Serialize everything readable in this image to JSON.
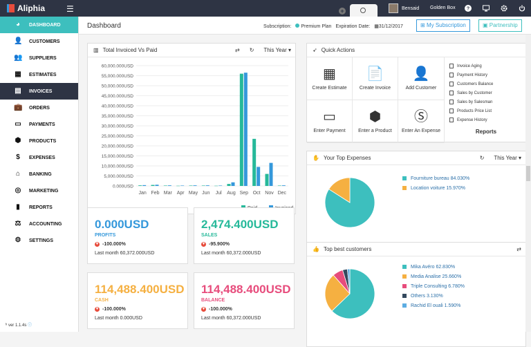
{
  "app": {
    "title": "Aliphia",
    "version": "ver 1.1.4s"
  },
  "topbar": {
    "user": "Bensaid",
    "company": "Golden Box"
  },
  "sidebar": {
    "items": [
      {
        "label": "DASHBOARD",
        "icon": "palette-icon"
      },
      {
        "label": "CUSTOMERS",
        "icon": "person-icon"
      },
      {
        "label": "SUPPLIERS",
        "icon": "supplier-icon"
      },
      {
        "label": "ESTIMATES",
        "icon": "calculator-icon"
      },
      {
        "label": "INVOICES",
        "icon": "invoice-icon"
      },
      {
        "label": "ORDERS",
        "icon": "briefcase-icon"
      },
      {
        "label": "PAYMENTS",
        "icon": "card-icon"
      },
      {
        "label": "PRODUCTS",
        "icon": "box-icon"
      },
      {
        "label": "EXPENSES",
        "icon": "dollar-icon"
      },
      {
        "label": "BANKING",
        "icon": "bank-icon"
      },
      {
        "label": "MARKETING",
        "icon": "target-icon"
      },
      {
        "label": "REPORTS",
        "icon": "bars-icon"
      },
      {
        "label": "ACCOUNTING",
        "icon": "scale-icon"
      },
      {
        "label": "SETTINGS",
        "icon": "gear-icon"
      }
    ]
  },
  "header": {
    "title": "Dashboard",
    "subscription_label": "Subscription:",
    "plan": "Premium Plan",
    "expiration_label": "Expiration Date:",
    "expiration_date": "31/12/2017",
    "my_subscription": "My Subscription",
    "partnership": "Partnership"
  },
  "invoice_chart": {
    "title": "Total Invoiced Vs Paid",
    "period": "This Year"
  },
  "chart_data": {
    "type": "bar",
    "categories": [
      "Jan",
      "Feb",
      "Mar",
      "Apr",
      "May",
      "Jun",
      "Jul",
      "Aug",
      "Sep",
      "Oct",
      "Nov",
      "Dec"
    ],
    "series": [
      {
        "name": "Paid",
        "color": "#26b99a",
        "values": [
          0.3,
          0.5,
          0.2,
          0.1,
          0.2,
          0.2,
          0.1,
          1.0,
          56.0,
          23.5,
          6.0,
          0.2
        ]
      },
      {
        "name": "Invoiced",
        "color": "#3498db",
        "values": [
          0.4,
          0.6,
          0.3,
          0.2,
          0.3,
          0.3,
          0.2,
          1.8,
          56.5,
          9.5,
          11.5,
          0.3
        ]
      }
    ],
    "yticks": [
      "60,000.000USD",
      "55,000.000USD",
      "50,000.000USD",
      "45,000.000USD",
      "40,000.000USD",
      "35,000.000USD",
      "30,000.000USD",
      "25,000.000USD",
      "20,000.000USD",
      "15,000.000USD",
      "10,000.000USD",
      "5,000.000USD",
      "0.000USD"
    ],
    "ylim": [
      0,
      60
    ],
    "legend": [
      "Paid",
      "Invoiced"
    ]
  },
  "quick_actions": {
    "title": "Quick Actions",
    "items": [
      {
        "label": "Create Estimate",
        "icon": "calculator-icon"
      },
      {
        "label": "Create Invoice",
        "icon": "invoice-icon"
      },
      {
        "label": "Add Customer",
        "icon": "person-icon"
      },
      {
        "label": "Enter Payment",
        "icon": "card-icon"
      },
      {
        "label": "Enter a Product",
        "icon": "box-icon"
      },
      {
        "label": "Enter An Expense",
        "icon": "dollar-icon"
      }
    ],
    "reports": [
      "Invoice Aging",
      "Payment History",
      "Customers Balance",
      "Sales by Customer",
      "Sales by Salesman",
      "Products Price List",
      "Expense History"
    ],
    "reports_title": "Reports"
  },
  "expenses": {
    "title": "Your Top Expenses",
    "period": "This Year",
    "slices": [
      {
        "label": "Fourniture bureau 84.030%",
        "value": 84.03,
        "color": "#3dbfbe"
      },
      {
        "label": "Location voiture 15.970%",
        "value": 15.97,
        "color": "#f5b041"
      }
    ]
  },
  "customers": {
    "title": "Top best customers",
    "slices": [
      {
        "label": "Mika Avéro 62.830%",
        "value": 62.83,
        "color": "#3dbfbe"
      },
      {
        "label": "Media Analise 25.660%",
        "value": 25.66,
        "color": "#f5b041"
      },
      {
        "label": "Triple Consulting 6.780%",
        "value": 6.78,
        "color": "#e74c7c"
      },
      {
        "label": "Others 3.130%",
        "value": 3.13,
        "color": "#34495e"
      },
      {
        "label": "Rachid El ouali 1.590%",
        "value": 1.59,
        "color": "#5dade2"
      }
    ]
  },
  "kpis": [
    {
      "value": "0.000USD",
      "label": "PROFITS",
      "pct": "-100.000%",
      "last": "Last month 60,372.000USD",
      "color": "#3498db"
    },
    {
      "value": "2,474.400USD",
      "label": "SALES",
      "pct": "-95.900%",
      "last": "Last month 60,372.000USD",
      "color": "#26b99a"
    },
    {
      "value": "114,488.400USD",
      "label": "CASH",
      "pct": "-100.000%",
      "last": "Last month 0.000USD",
      "color": "#f5b041"
    },
    {
      "value": "114,488.400USD",
      "label": "BALANCE",
      "pct": "-100.000%",
      "last": "Last month 60,372.000USD",
      "color": "#e74c7c"
    }
  ]
}
